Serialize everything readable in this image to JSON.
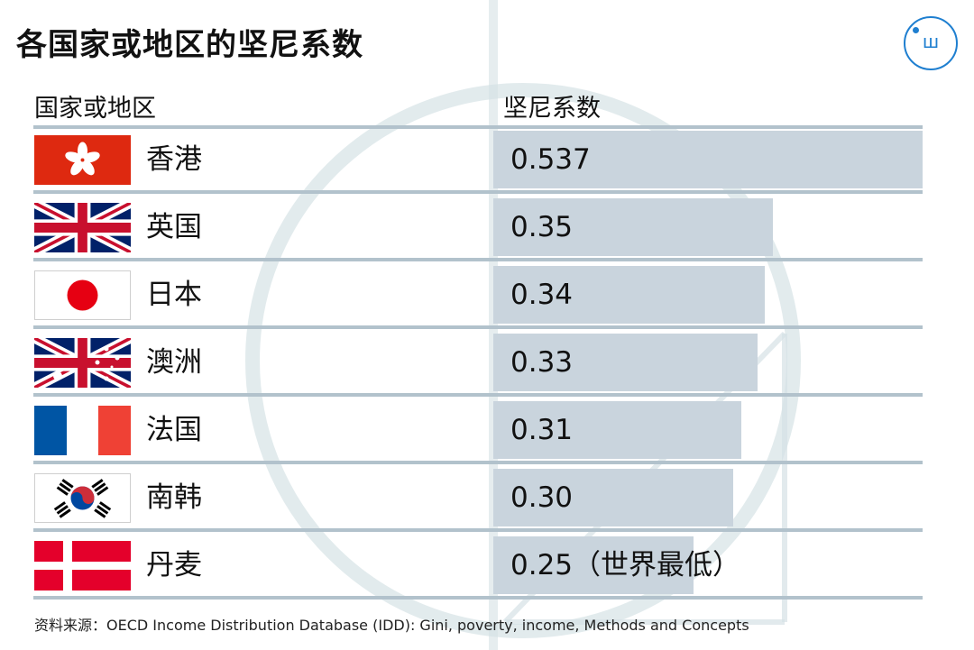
{
  "title": "各国家或地区的坚尼系数",
  "logo": {
    "glyph": "ш",
    "icon": "brand-logo-icon",
    "color": "#1f7fd0"
  },
  "columns": {
    "region": "国家或地区",
    "value": "坚尼系数"
  },
  "colors": {
    "bar": "#c9d4dd",
    "separator": "#b2c2cc",
    "accent": "#1f7fd0"
  },
  "chart_data": {
    "type": "bar",
    "orientation": "horizontal",
    "title": "各国家或地区的坚尼系数",
    "xlabel": "坚尼系数",
    "ylabel": "国家或地区",
    "categories": [
      "香港",
      "英国",
      "日本",
      "澳洲",
      "法国",
      "南韩",
      "丹麦"
    ],
    "values": [
      0.537,
      0.35,
      0.34,
      0.33,
      0.31,
      0.3,
      0.25
    ],
    "value_labels": [
      "0.537",
      "0.35",
      "0.34",
      "0.33",
      "0.31",
      "0.30",
      "0.25（世界最低）"
    ],
    "flags": [
      "hong-kong-flag-icon",
      "uk-flag-icon",
      "japan-flag-icon",
      "australia-flag-icon",
      "france-flag-icon",
      "korea-flag-icon",
      "denmark-flag-icon"
    ],
    "xlim": [
      0,
      0.537
    ],
    "grid": false,
    "legend": "none"
  },
  "source": "资料来源：OECD Income Distribution Database (IDD): Gini, poverty, income, Methods and Concepts"
}
